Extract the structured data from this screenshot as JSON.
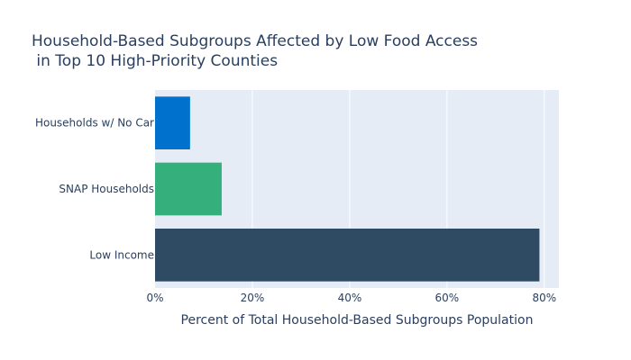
{
  "chart_data": {
    "type": "bar",
    "orientation": "horizontal",
    "title_lines": [
      "Household-Based Subgroups Affected by Low Food Access",
      " in Top 10 High-Priority Counties"
    ],
    "xlabel": "Percent of Total Household-Based Subgroups Population",
    "ylabel": "",
    "categories": [
      "Households w/ No Car",
      "SNAP Households",
      "Low Income"
    ],
    "values": [
      0.072,
      0.137,
      0.79
    ],
    "colors": [
      "#0072cd",
      "#35b07c",
      "#2f4b63"
    ],
    "xlim": [
      0,
      0.83
    ],
    "xticks": [
      0,
      0.2,
      0.4,
      0.6,
      0.8
    ],
    "xtick_labels": [
      "0%",
      "20%",
      "40%",
      "60%",
      "80%"
    ],
    "grid": true,
    "plot_background": "#e5ecf6"
  }
}
